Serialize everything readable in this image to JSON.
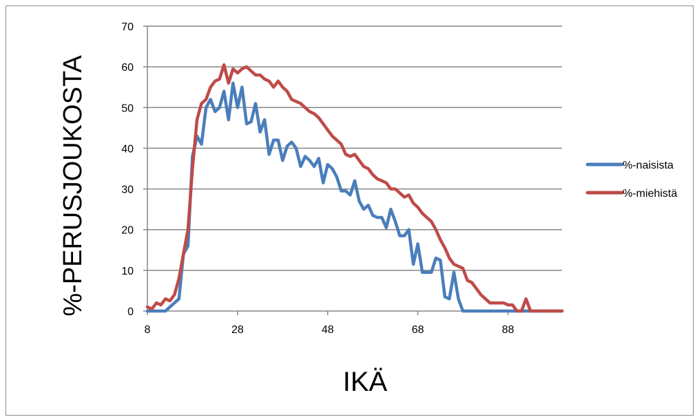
{
  "chart_data": {
    "type": "line",
    "xlabel": "IKÄ",
    "ylabel": "%-PERUSJOUKOSTA",
    "xlim": [
      8,
      100
    ],
    "ylim": [
      0,
      70
    ],
    "x_ticks": [
      "8",
      "28",
      "48",
      "68",
      "88"
    ],
    "y_ticks": [
      "0",
      "10",
      "20",
      "30",
      "40",
      "50",
      "60",
      "70"
    ],
    "grid": "horizontal",
    "legend_position": "right",
    "series": [
      {
        "name": "%-naisista",
        "color": "#4a7ebb",
        "points": [
          [
            8,
            0
          ],
          [
            10,
            0
          ],
          [
            12,
            0
          ],
          [
            13,
            1
          ],
          [
            14,
            2
          ],
          [
            15,
            3
          ],
          [
            16,
            14
          ],
          [
            17,
            16
          ],
          [
            18,
            38
          ],
          [
            19,
            43
          ],
          [
            20,
            41
          ],
          [
            21,
            50
          ],
          [
            22,
            52
          ],
          [
            23,
            49
          ],
          [
            24,
            50
          ],
          [
            25,
            54
          ],
          [
            26,
            47
          ],
          [
            27,
            56
          ],
          [
            28,
            50
          ],
          [
            29,
            55
          ],
          [
            30,
            46
          ],
          [
            31,
            46.5
          ],
          [
            32,
            51
          ],
          [
            33,
            44
          ],
          [
            34,
            47
          ],
          [
            35,
            38.5
          ],
          [
            36,
            42
          ],
          [
            37,
            42
          ],
          [
            38,
            37
          ],
          [
            39,
            40.5
          ],
          [
            40,
            41.5
          ],
          [
            41,
            40
          ],
          [
            42,
            35.5
          ],
          [
            43,
            38
          ],
          [
            44,
            37
          ],
          [
            45,
            35.5
          ],
          [
            46,
            37.5
          ],
          [
            47,
            31.5
          ],
          [
            48,
            36
          ],
          [
            49,
            35
          ],
          [
            50,
            33
          ],
          [
            51,
            29.5
          ],
          [
            52,
            29.5
          ],
          [
            53,
            28.5
          ],
          [
            54,
            32
          ],
          [
            55,
            27
          ],
          [
            56,
            25
          ],
          [
            57,
            26
          ],
          [
            58,
            23.5
          ],
          [
            59,
            23
          ],
          [
            60,
            23
          ],
          [
            61,
            20.5
          ],
          [
            62,
            25
          ],
          [
            63,
            22
          ],
          [
            64,
            18.5
          ],
          [
            65,
            18.5
          ],
          [
            66,
            20
          ],
          [
            67,
            11.5
          ],
          [
            68,
            16.5
          ],
          [
            69,
            9.5
          ],
          [
            70,
            9.5
          ],
          [
            71,
            9.5
          ],
          [
            72,
            13
          ],
          [
            73,
            12.5
          ],
          [
            74,
            3.5
          ],
          [
            75,
            3
          ],
          [
            76,
            9.5
          ],
          [
            77,
            3
          ],
          [
            78,
            0
          ],
          [
            80,
            0
          ],
          [
            85,
            0
          ],
          [
            90,
            0
          ],
          [
            92,
            0
          ],
          [
            95,
            0
          ],
          [
            100,
            0
          ]
        ]
      },
      {
        "name": "%-miehistä",
        "color": "#be4b48",
        "points": [
          [
            8,
            1
          ],
          [
            9,
            0.5
          ],
          [
            10,
            2
          ],
          [
            11,
            1.5
          ],
          [
            12,
            3
          ],
          [
            13,
            2.5
          ],
          [
            14,
            4
          ],
          [
            15,
            8
          ],
          [
            16,
            14
          ],
          [
            17,
            20
          ],
          [
            18,
            35
          ],
          [
            19,
            47
          ],
          [
            20,
            51
          ],
          [
            21,
            52
          ],
          [
            22,
            55
          ],
          [
            23,
            56.5
          ],
          [
            24,
            57
          ],
          [
            25,
            60.5
          ],
          [
            26,
            56
          ],
          [
            27,
            59.5
          ],
          [
            28,
            58.5
          ],
          [
            29,
            59.5
          ],
          [
            30,
            60
          ],
          [
            31,
            59
          ],
          [
            32,
            58
          ],
          [
            33,
            58
          ],
          [
            34,
            57
          ],
          [
            35,
            56.5
          ],
          [
            36,
            55
          ],
          [
            37,
            56.5
          ],
          [
            38,
            55
          ],
          [
            39,
            54
          ],
          [
            40,
            52
          ],
          [
            41,
            51.5
          ],
          [
            42,
            51
          ],
          [
            43,
            50
          ],
          [
            44,
            49
          ],
          [
            45,
            48.5
          ],
          [
            46,
            47.5
          ],
          [
            47,
            46
          ],
          [
            48,
            44.5
          ],
          [
            49,
            43
          ],
          [
            50,
            42
          ],
          [
            51,
            41
          ],
          [
            52,
            38.5
          ],
          [
            53,
            38
          ],
          [
            54,
            38.5
          ],
          [
            55,
            37
          ],
          [
            56,
            35.5
          ],
          [
            57,
            35
          ],
          [
            58,
            33.5
          ],
          [
            59,
            32.5
          ],
          [
            60,
            32
          ],
          [
            61,
            31.5
          ],
          [
            62,
            30
          ],
          [
            63,
            30
          ],
          [
            64,
            29
          ],
          [
            65,
            28
          ],
          [
            66,
            28.5
          ],
          [
            67,
            26.5
          ],
          [
            68,
            25.5
          ],
          [
            69,
            24
          ],
          [
            70,
            23
          ],
          [
            71,
            22
          ],
          [
            72,
            20
          ],
          [
            73,
            17.5
          ],
          [
            74,
            15.5
          ],
          [
            75,
            13
          ],
          [
            76,
            11.5
          ],
          [
            77,
            11
          ],
          [
            78,
            10.5
          ],
          [
            79,
            7.5
          ],
          [
            80,
            7
          ],
          [
            81,
            5.5
          ],
          [
            82,
            4
          ],
          [
            83,
            3
          ],
          [
            84,
            2
          ],
          [
            85,
            2
          ],
          [
            86,
            2
          ],
          [
            87,
            2
          ],
          [
            88,
            1.5
          ],
          [
            89,
            1.5
          ],
          [
            90,
            0
          ],
          [
            91,
            0
          ],
          [
            92,
            3
          ],
          [
            93,
            0
          ],
          [
            94,
            0
          ],
          [
            96,
            0
          ],
          [
            100,
            0
          ]
        ]
      }
    ]
  }
}
